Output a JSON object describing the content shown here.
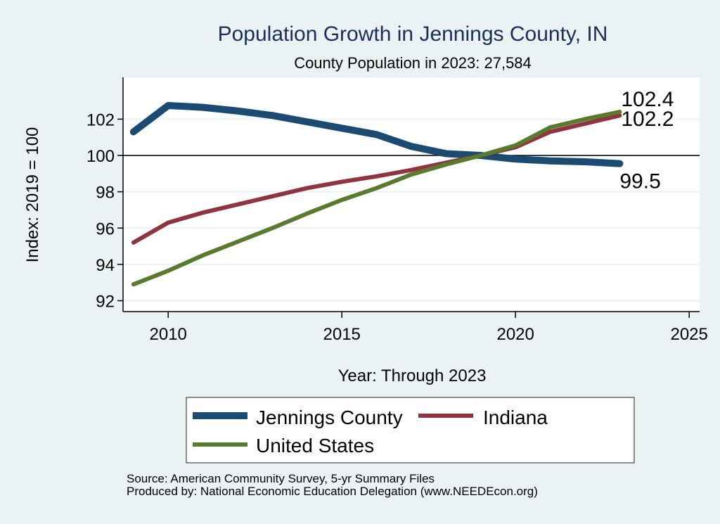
{
  "chart_data": {
    "type": "line",
    "title": "Population Growth in Jennings County, IN",
    "subtitle": "County Population in 2023: 27,584",
    "xlabel": "Year: Through 2023",
    "ylabel": "Index: 2019 = 100",
    "xlim": [
      2008.7,
      2025.3
    ],
    "ylim": [
      91.4,
      104.3
    ],
    "xticks": [
      2010,
      2015,
      2020,
      2025
    ],
    "yticks": [
      92,
      94,
      96,
      98,
      100,
      102
    ],
    "reference_line": 100,
    "grid": true,
    "x": [
      2009,
      2010,
      2011,
      2012,
      2013,
      2014,
      2015,
      2016,
      2017,
      2018,
      2019,
      2020,
      2021,
      2022,
      2023
    ],
    "series": [
      {
        "name": "Jennings  County",
        "color": "#1b4a72",
        "values": [
          101.3,
          102.75,
          102.65,
          102.45,
          102.2,
          101.85,
          101.5,
          101.15,
          100.5,
          100.1,
          100.0,
          99.8,
          99.7,
          99.65,
          99.55
        ],
        "end_label": "99.5"
      },
      {
        "name": "Indiana",
        "color": "#8f3540",
        "values": [
          95.2,
          96.3,
          96.85,
          97.3,
          97.75,
          98.2,
          98.55,
          98.85,
          99.2,
          99.6,
          100.0,
          100.45,
          101.3,
          101.75,
          102.2
        ],
        "end_label": "102.2"
      },
      {
        "name": "United States",
        "color": "#5a7a2e",
        "values": [
          92.9,
          93.65,
          94.5,
          95.25,
          96.0,
          96.8,
          97.55,
          98.2,
          98.95,
          99.5,
          100.0,
          100.55,
          101.55,
          102.0,
          102.4
        ],
        "end_label": "102.4"
      }
    ],
    "legend": {
      "position": "bottom",
      "entries": [
        "Jennings  County",
        "Indiana",
        "United States"
      ]
    },
    "notes": [
      "Source: American Community Survey, 5-yr Summary Files",
      "Produced by: National Economic Education Delegation (www.NEEDEcon.org)"
    ]
  }
}
